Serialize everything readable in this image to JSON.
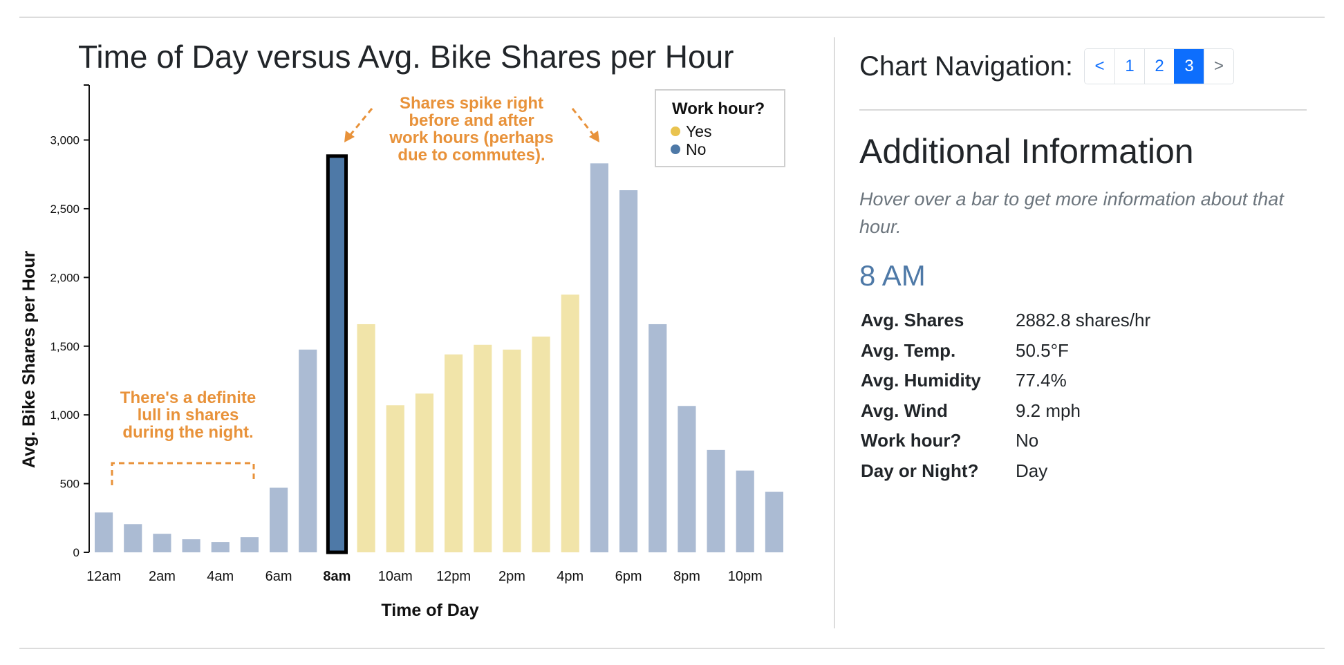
{
  "chart_data": {
    "type": "bar",
    "title": "Time of Day versus Avg. Bike Shares per Hour",
    "xlabel": "Time of Day",
    "ylabel": "Avg. Bike Shares per Hour",
    "ylim": [
      0,
      3400
    ],
    "yticks": [
      0,
      500,
      1000,
      1500,
      2000,
      2500,
      3000
    ],
    "ytick_labels": [
      "0",
      "500",
      "1,000",
      "1,500",
      "2,000",
      "2,500",
      "3,000"
    ],
    "categories": [
      "12am",
      "1am",
      "2am",
      "3am",
      "4am",
      "5am",
      "6am",
      "7am",
      "8am",
      "9am",
      "10am",
      "11am",
      "12pm",
      "1pm",
      "2pm",
      "3pm",
      "4pm",
      "5pm",
      "6pm",
      "7pm",
      "8pm",
      "9pm",
      "10pm",
      "11pm"
    ],
    "xtick_labels": [
      "12am",
      "2am",
      "4am",
      "6am",
      "8am",
      "10am",
      "12pm",
      "2pm",
      "4pm",
      "6pm",
      "8pm",
      "10pm"
    ],
    "values": [
      290,
      205,
      135,
      95,
      75,
      110,
      470,
      1475,
      2883,
      1660,
      1070,
      1155,
      1440,
      1510,
      1475,
      1570,
      1875,
      2830,
      2635,
      1660,
      1065,
      745,
      595,
      440
    ],
    "work_hour": [
      "No",
      "No",
      "No",
      "No",
      "No",
      "No",
      "No",
      "No",
      "No",
      "Yes",
      "Yes",
      "Yes",
      "Yes",
      "Yes",
      "Yes",
      "Yes",
      "Yes",
      "No",
      "No",
      "No",
      "No",
      "No",
      "No",
      "No"
    ],
    "highlighted": "8am",
    "legend": {
      "title": "Work hour?",
      "entries": [
        "Yes",
        "No"
      ],
      "placement": "top-right"
    },
    "colors": {
      "yes": "#f1e4a9",
      "no": "#abbbd3",
      "highlight": "#4e79a7",
      "yes_marker": "#e9c34f",
      "no_marker": "#4e79a7",
      "annotation": "#e8923a"
    },
    "annotations": [
      [
        "There's a definite",
        "lull in shares",
        "during the night."
      ],
      [
        "Shares spike right",
        "before and after",
        "work hours (perhaps",
        "due to commutes)."
      ]
    ],
    "grid": false
  },
  "panel": {
    "nav_label": "Chart Navigation:",
    "pages": [
      "<",
      "1",
      "2",
      "3",
      ">"
    ],
    "active_page": "3",
    "info_title": "Additional Information",
    "hint": "Hover over a bar to get more information about that hour.",
    "hour_heading": "8 AM",
    "rows": [
      {
        "key": "Avg. Shares",
        "value": "2882.8 shares/hr"
      },
      {
        "key": "Avg. Temp.",
        "value": "50.5°F"
      },
      {
        "key": "Avg. Humidity",
        "value": "77.4%"
      },
      {
        "key": "Avg. Wind",
        "value": "9.2 mph"
      },
      {
        "key": "Work hour?",
        "value": "No"
      },
      {
        "key": "Day or Night?",
        "value": "Day"
      }
    ]
  }
}
